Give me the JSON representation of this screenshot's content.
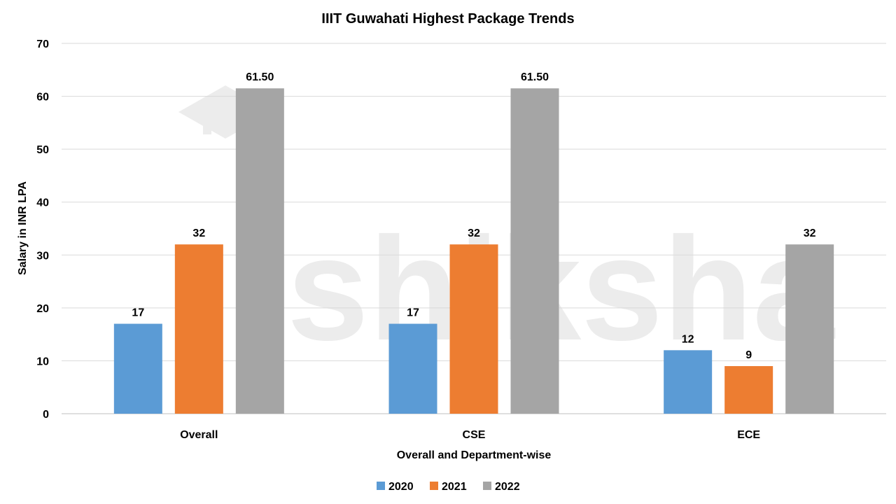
{
  "chart_data": {
    "type": "bar",
    "title": "IIIT Guwahati Highest Package Trends",
    "xlabel": "Overall and Department-wise",
    "ylabel": "Salary in INR LPA",
    "categories": [
      "Overall",
      "CSE",
      "ECE"
    ],
    "series": [
      {
        "name": "2020",
        "color": "#5b9bd5",
        "values": [
          17,
          17,
          12
        ],
        "labels": [
          "17",
          "17",
          "12"
        ]
      },
      {
        "name": "2021",
        "color": "#ed7d31",
        "values": [
          32,
          32,
          9
        ],
        "labels": [
          "32",
          "32",
          "9"
        ]
      },
      {
        "name": "2022",
        "color": "#a5a5a5",
        "values": [
          61.5,
          61.5,
          32
        ],
        "labels": [
          "61.50",
          "61.50",
          "32"
        ]
      }
    ],
    "ylim": [
      0,
      70
    ],
    "yticks": [
      "0",
      "10",
      "20",
      "30",
      "40",
      "50",
      "60",
      "70"
    ],
    "grid": true,
    "legend": "bottom",
    "watermark": "shiksha"
  }
}
